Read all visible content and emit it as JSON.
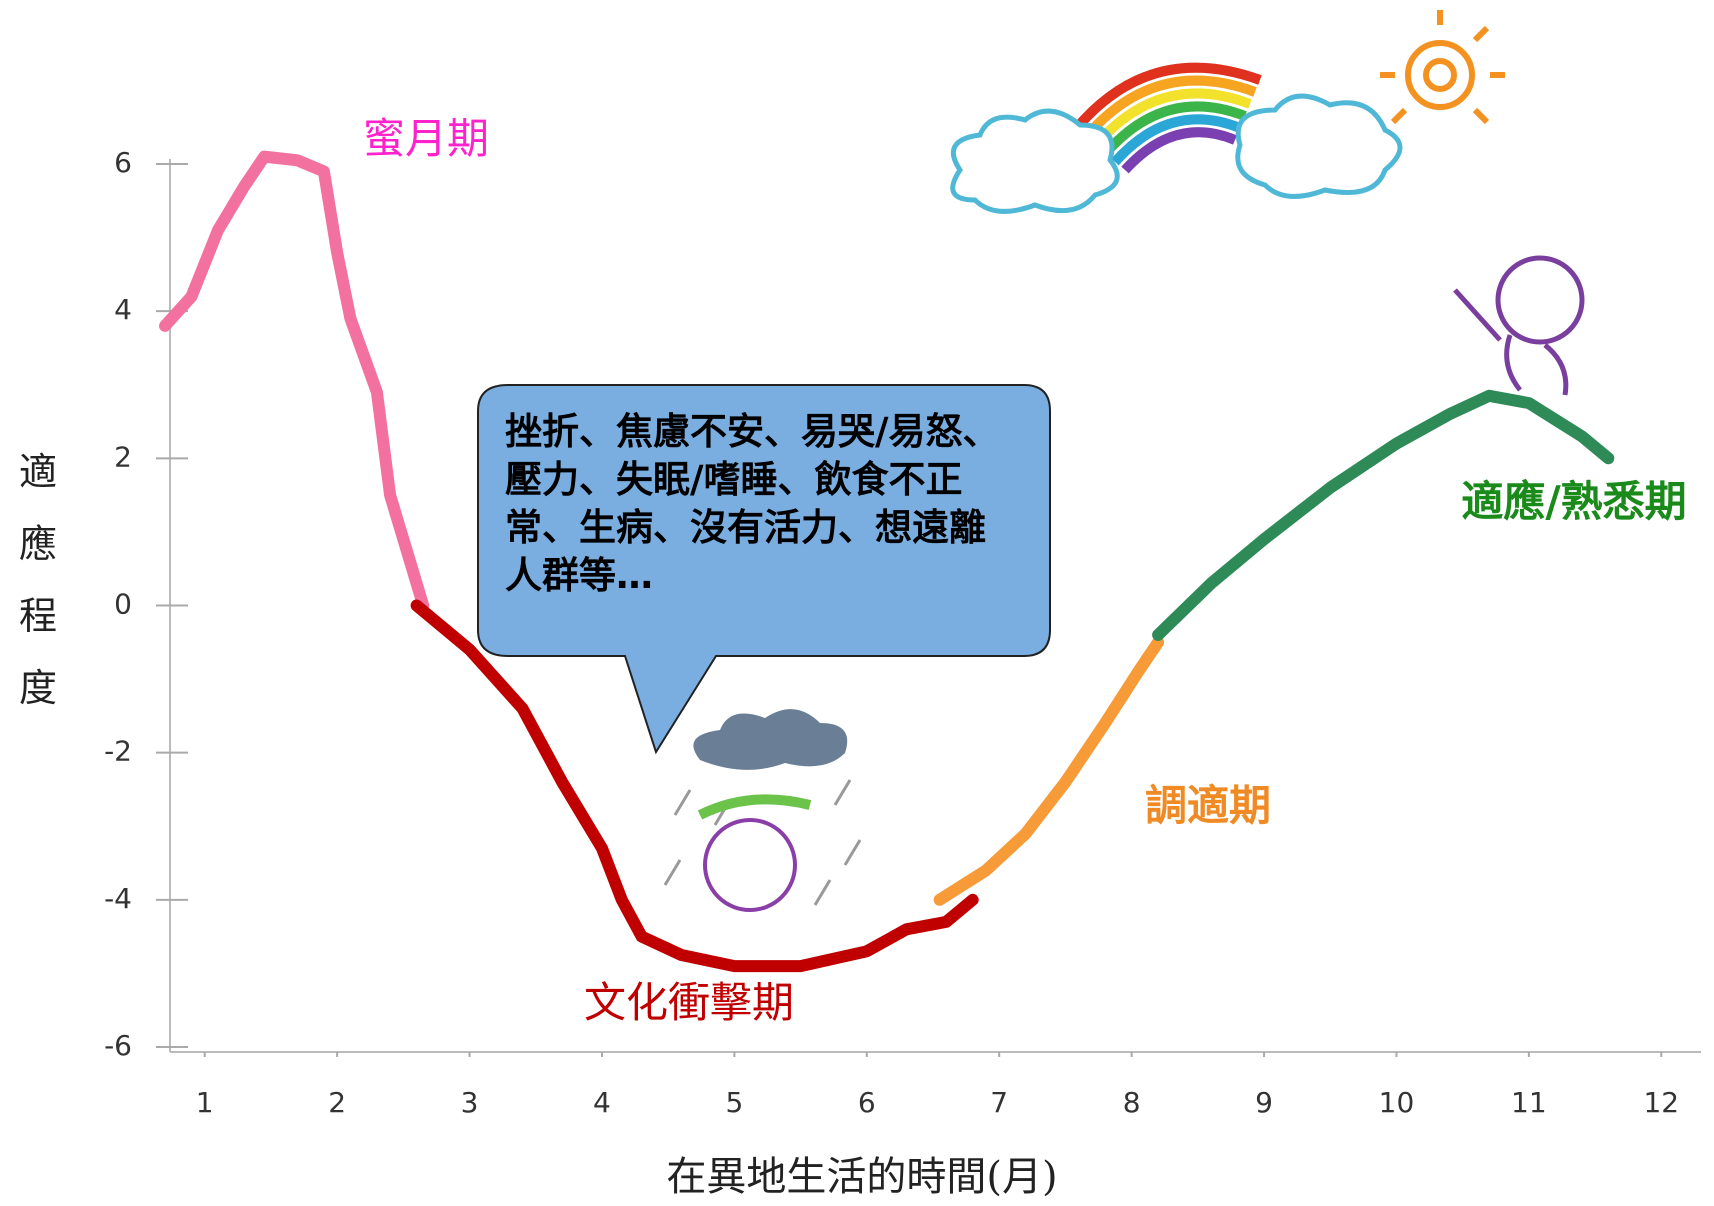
{
  "chart_data": {
    "type": "line",
    "y_label": "適應程度",
    "x_label": "在異地生活的時間(月)",
    "xlim": [
      0.7,
      12.3
    ],
    "ylim": [
      -6,
      6
    ],
    "xticks": [
      1,
      2,
      3,
      4,
      5,
      6,
      7,
      8,
      9,
      10,
      11,
      12
    ],
    "yticks": [
      -6,
      -4,
      -2,
      0,
      2,
      4,
      6
    ],
    "series": [
      {
        "name": "蜜月期",
        "color": "#f2719f",
        "x": [
          0.7,
          0.9,
          1.1,
          1.3,
          1.45,
          1.7,
          1.9,
          2.0,
          2.1,
          2.3,
          2.4,
          2.45,
          2.55,
          2.65
        ],
        "values": [
          3.8,
          4.2,
          5.1,
          5.7,
          6.1,
          6.05,
          5.9,
          4.8,
          3.9,
          2.9,
          1.5,
          1.2,
          0.6,
          0
        ]
      },
      {
        "name": "文化衝擊期",
        "color": "#c00000",
        "x": [
          2.6,
          3.0,
          3.4,
          3.7,
          4.0,
          4.15,
          4.3,
          4.6,
          5.0,
          5.5,
          6.0,
          6.3,
          6.6,
          6.8
        ],
        "values": [
          0,
          -0.6,
          -1.4,
          -2.4,
          -3.3,
          -4.0,
          -4.5,
          -4.75,
          -4.9,
          -4.9,
          -4.7,
          -4.4,
          -4.3,
          -4.0
        ]
      },
      {
        "name": "調適期",
        "color": "#f79a38",
        "x": [
          6.55,
          6.9,
          7.2,
          7.5,
          7.8,
          8.05,
          8.2
        ],
        "values": [
          -4.0,
          -3.6,
          -3.1,
          -2.4,
          -1.6,
          -0.9,
          -0.5
        ]
      },
      {
        "name": "適應/熟悉期",
        "color": "#2e8b57",
        "x": [
          8.2,
          8.6,
          9.0,
          9.5,
          10.0,
          10.4,
          10.7,
          11.0,
          11.4,
          11.6
        ],
        "values": [
          -0.4,
          0.3,
          0.9,
          1.6,
          2.2,
          2.6,
          2.85,
          2.75,
          2.3,
          2.0
        ]
      }
    ],
    "annotation": "挫折、焦慮不安、易哭/易怒、壓力、失眠/嗜睡、飲食不正常、生病、沒有活力、想遠離人群等…"
  }
}
